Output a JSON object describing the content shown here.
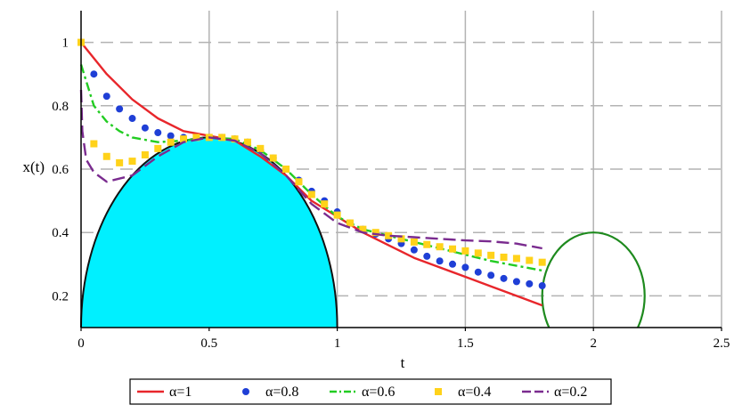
{
  "chart_data": {
    "type": "line",
    "title": "",
    "xlabel": "t",
    "ylabel": "x(t)",
    "xlim": [
      0,
      2.5
    ],
    "ylim": [
      0.1,
      1.1
    ],
    "x_ticks": [
      "0",
      "0.5",
      "1",
      "1.5",
      "2",
      "2.5"
    ],
    "y_ticks": [
      "0.2",
      "0.4",
      "0.6",
      "0.8",
      "1"
    ],
    "grid": true,
    "legend_position": "bottom",
    "series": [
      {
        "name": "α=1",
        "style": "solid",
        "color": "#e8262b",
        "points": [
          [
            0,
            1.0
          ],
          [
            0.1,
            0.9
          ],
          [
            0.2,
            0.82
          ],
          [
            0.3,
            0.76
          ],
          [
            0.4,
            0.72
          ],
          [
            0.5,
            0.705
          ],
          [
            0.6,
            0.69
          ],
          [
            0.7,
            0.64
          ],
          [
            0.8,
            0.58
          ],
          [
            0.9,
            0.5
          ],
          [
            1.0,
            0.45
          ],
          [
            1.1,
            0.4
          ],
          [
            1.2,
            0.36
          ],
          [
            1.3,
            0.32
          ],
          [
            1.4,
            0.29
          ],
          [
            1.5,
            0.26
          ],
          [
            1.6,
            0.23
          ],
          [
            1.7,
            0.2
          ],
          [
            1.8,
            0.17
          ]
        ]
      },
      {
        "name": "α=0.8",
        "style": "dots",
        "color": "#1f3fd6",
        "points": [
          [
            0,
            1.0
          ],
          [
            0.05,
            0.9
          ],
          [
            0.1,
            0.83
          ],
          [
            0.15,
            0.79
          ],
          [
            0.2,
            0.76
          ],
          [
            0.25,
            0.73
          ],
          [
            0.3,
            0.715
          ],
          [
            0.35,
            0.705
          ],
          [
            0.4,
            0.7
          ],
          [
            0.45,
            0.7
          ],
          [
            0.5,
            0.7
          ],
          [
            0.55,
            0.7
          ],
          [
            0.6,
            0.695
          ],
          [
            0.65,
            0.685
          ],
          [
            0.7,
            0.66
          ],
          [
            0.75,
            0.635
          ],
          [
            0.8,
            0.6
          ],
          [
            0.85,
            0.565
          ],
          [
            0.9,
            0.53
          ],
          [
            0.95,
            0.5
          ],
          [
            1.0,
            0.465
          ],
          [
            1.05,
            0.43
          ],
          [
            1.1,
            0.41
          ],
          [
            1.15,
            0.395
          ],
          [
            1.2,
            0.38
          ],
          [
            1.25,
            0.365
          ],
          [
            1.3,
            0.345
          ],
          [
            1.35,
            0.325
          ],
          [
            1.4,
            0.31
          ],
          [
            1.45,
            0.3
          ],
          [
            1.5,
            0.29
          ],
          [
            1.55,
            0.275
          ],
          [
            1.6,
            0.265
          ],
          [
            1.65,
            0.255
          ],
          [
            1.7,
            0.245
          ],
          [
            1.75,
            0.238
          ],
          [
            1.8,
            0.232
          ]
        ]
      },
      {
        "name": "α=0.6",
        "style": "dash-dot",
        "color": "#22cc22",
        "points": [
          [
            0,
            0.93
          ],
          [
            0.05,
            0.8
          ],
          [
            0.1,
            0.75
          ],
          [
            0.15,
            0.72
          ],
          [
            0.2,
            0.7
          ],
          [
            0.3,
            0.685
          ],
          [
            0.4,
            0.69
          ],
          [
            0.5,
            0.7
          ],
          [
            0.6,
            0.695
          ],
          [
            0.7,
            0.66
          ],
          [
            0.8,
            0.6
          ],
          [
            0.9,
            0.52
          ],
          [
            1.0,
            0.45
          ],
          [
            1.1,
            0.41
          ],
          [
            1.2,
            0.39
          ],
          [
            1.3,
            0.37
          ],
          [
            1.4,
            0.35
          ],
          [
            1.5,
            0.33
          ],
          [
            1.6,
            0.31
          ],
          [
            1.7,
            0.295
          ],
          [
            1.8,
            0.28
          ]
        ]
      },
      {
        "name": "α=0.4",
        "style": "squares",
        "color": "#ffd21a",
        "points": [
          [
            0,
            1.0
          ],
          [
            0.05,
            0.68
          ],
          [
            0.1,
            0.64
          ],
          [
            0.15,
            0.62
          ],
          [
            0.2,
            0.625
          ],
          [
            0.25,
            0.645
          ],
          [
            0.3,
            0.665
          ],
          [
            0.35,
            0.685
          ],
          [
            0.4,
            0.695
          ],
          [
            0.45,
            0.7
          ],
          [
            0.5,
            0.7
          ],
          [
            0.55,
            0.7
          ],
          [
            0.6,
            0.695
          ],
          [
            0.65,
            0.685
          ],
          [
            0.7,
            0.665
          ],
          [
            0.75,
            0.635
          ],
          [
            0.8,
            0.6
          ],
          [
            0.85,
            0.56
          ],
          [
            0.9,
            0.52
          ],
          [
            0.95,
            0.49
          ],
          [
            1.0,
            0.455
          ],
          [
            1.05,
            0.43
          ],
          [
            1.1,
            0.41
          ],
          [
            1.15,
            0.4
          ],
          [
            1.2,
            0.39
          ],
          [
            1.25,
            0.38
          ],
          [
            1.3,
            0.37
          ],
          [
            1.35,
            0.362
          ],
          [
            1.4,
            0.355
          ],
          [
            1.45,
            0.348
          ],
          [
            1.5,
            0.342
          ],
          [
            1.55,
            0.335
          ],
          [
            1.6,
            0.328
          ],
          [
            1.65,
            0.322
          ],
          [
            1.7,
            0.318
          ],
          [
            1.75,
            0.312
          ],
          [
            1.8,
            0.306
          ]
        ]
      },
      {
        "name": "α=0.2",
        "style": "long-dash",
        "color": "#7a2b8f",
        "points": [
          [
            0,
            0.85
          ],
          [
            0.005,
            0.72
          ],
          [
            0.02,
            0.63
          ],
          [
            0.05,
            0.59
          ],
          [
            0.1,
            0.56
          ],
          [
            0.2,
            0.58
          ],
          [
            0.3,
            0.64
          ],
          [
            0.4,
            0.685
          ],
          [
            0.5,
            0.7
          ],
          [
            0.6,
            0.69
          ],
          [
            0.7,
            0.65
          ],
          [
            0.8,
            0.58
          ],
          [
            0.9,
            0.49
          ],
          [
            1.0,
            0.43
          ],
          [
            1.1,
            0.4
          ],
          [
            1.2,
            0.39
          ],
          [
            1.3,
            0.385
          ],
          [
            1.4,
            0.38
          ],
          [
            1.5,
            0.375
          ],
          [
            1.6,
            0.372
          ],
          [
            1.7,
            0.365
          ],
          [
            1.8,
            0.35
          ]
        ]
      }
    ],
    "shapes": [
      {
        "kind": "filled-half-ellipse",
        "center": [
          0.5,
          0.1
        ],
        "radius_x": 0.5,
        "radius_y": 0.6,
        "fill": "#00f0ff",
        "stroke": "#111111"
      },
      {
        "kind": "ellipse-outline",
        "center": [
          2.0,
          0.2
        ],
        "radius_x": 0.2,
        "radius_y": 0.2,
        "visible_y_min": 0.1,
        "stroke": "#1e8a1e"
      }
    ]
  }
}
